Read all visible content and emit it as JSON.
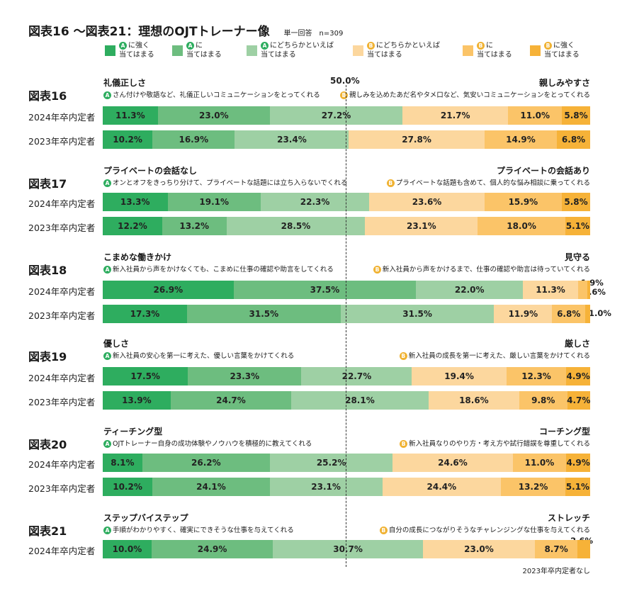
{
  "title": "図表16 〜図表21：理想のOJTトレーナー像",
  "note": "単一回答　n=309",
  "legend": [
    {
      "tag": "A",
      "text": "に強く\n当てはまる",
      "color": "#2ead5f"
    },
    {
      "tag": "A",
      "text": "に\n当てはまる",
      "color": "#6dbd7f"
    },
    {
      "tag": "A",
      "text": "にどちらかといえば\n当てはまる",
      "color": "#9ed0a4"
    },
    {
      "tag": "B",
      "text": "にどちらかといえば\n当てはまる",
      "color": "#fcd79e"
    },
    {
      "tag": "B",
      "text": "に\n当てはまる",
      "color": "#fbc468"
    },
    {
      "tag": "B",
      "text": "に強く\n当てはまる",
      "color": "#f6b238"
    }
  ],
  "midline_label": "50.0%",
  "footnote": "2023年卒内定者なし",
  "chart_data": {
    "type": "bar",
    "stacked": true,
    "orientation": "horizontal",
    "series_names": [
      "Aに強く当てはまる",
      "Aに当てはまる",
      "Aにどちらかといえば当てはまる",
      "Bにどちらかといえば当てはまる",
      "Bに当てはまる",
      "Bに強く当てはまる"
    ],
    "xlim": [
      0,
      100
    ],
    "groups": [
      {
        "id": "図表16",
        "left_title": "礼儀正しさ",
        "right_title": "親しみやすさ",
        "left_desc": "さん付けや敬語など、礼儀正しいコミュニケーションをとってくれる",
        "right_desc": "親しみを込めたあだ名やタメ口など、気安いコミュニケーションをとってくれる",
        "rows": [
          {
            "label": "2024年卒内定者",
            "values": [
              11.3,
              23.0,
              27.2,
              21.7,
              11.0,
              5.8
            ]
          },
          {
            "label": "2023年卒内定者",
            "values": [
              10.2,
              16.9,
              23.4,
              27.8,
              14.9,
              6.8
            ]
          }
        ]
      },
      {
        "id": "図表17",
        "left_title": "プライベートの会話なし",
        "right_title": "プライベートの会話あり",
        "left_desc": "オンとオフをきっちり分けて、プライベートな話題には立ち入らないでくれる",
        "right_desc": "プライベートな話題も含めて、個人的な悩み相談に乗ってくれる",
        "rows": [
          {
            "label": "2024年卒内定者",
            "values": [
              13.3,
              19.1,
              22.3,
              23.6,
              15.9,
              5.8
            ]
          },
          {
            "label": "2023年卒内定者",
            "values": [
              12.2,
              13.2,
              28.5,
              23.1,
              18.0,
              5.1
            ]
          }
        ]
      },
      {
        "id": "図表18",
        "left_title": "こまめな働きかけ",
        "right_title": "見守る",
        "left_desc": "新入社員から声をかけなくても、こまめに仕事の確認や助言をしてくれる",
        "right_desc": "新入社員から声をかけるまで、仕事の確認や助言は待っていてくれる",
        "rows": [
          {
            "label": "2024年卒内定者",
            "values": [
              26.9,
              37.5,
              22.0,
              11.3,
              1.9,
              0.6
            ]
          },
          {
            "label": "2023年卒内定者",
            "values": [
              17.3,
              31.5,
              31.5,
              11.9,
              6.8,
              1.0
            ]
          }
        ]
      },
      {
        "id": "図表19",
        "left_title": "優しさ",
        "right_title": "厳しさ",
        "left_desc": "新入社員の安心を第一に考えた、優しい言葉をかけてくれる",
        "right_desc": "新入社員の成長を第一に考えた、厳しい言葉をかけてくれる",
        "rows": [
          {
            "label": "2024年卒内定者",
            "values": [
              17.5,
              23.3,
              22.7,
              19.4,
              12.3,
              4.9
            ]
          },
          {
            "label": "2023年卒内定者",
            "values": [
              13.9,
              24.7,
              28.1,
              18.6,
              9.8,
              4.7
            ]
          }
        ]
      },
      {
        "id": "図表20",
        "left_title": "ティーチング型",
        "right_title": "コーチング型",
        "left_desc": "OJTトレーナー自身の成功体験やノウハウを積極的に教えてくれる",
        "right_desc": "新入社員なりのやり方・考え方や試行錯誤を尊重してくれる",
        "rows": [
          {
            "label": "2024年卒内定者",
            "values": [
              8.1,
              26.2,
              25.2,
              24.6,
              11.0,
              4.9
            ]
          },
          {
            "label": "2023年卒内定者",
            "values": [
              10.2,
              24.1,
              23.1,
              24.4,
              13.2,
              5.1
            ]
          }
        ]
      },
      {
        "id": "図表21",
        "left_title": "ステップバイステップ",
        "right_title": "ストレッチ",
        "left_desc": "手順がわかりやすく、確実にできそうな仕事を与えてくれる",
        "right_desc": "自分の成長につながりそうなチャレンジングな仕事を与えてくれる",
        "rows": [
          {
            "label": "2024年卒内定者",
            "values": [
              10.0,
              24.9,
              30.7,
              23.0,
              8.7,
              2.6
            ]
          }
        ]
      }
    ]
  }
}
